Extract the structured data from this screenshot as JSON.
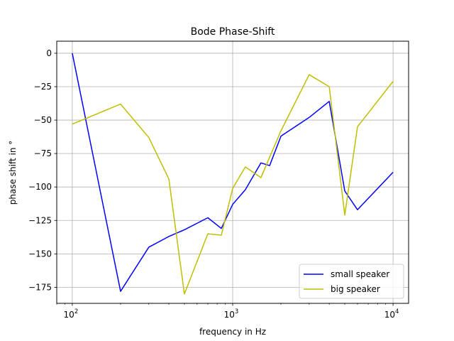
{
  "chart_data": {
    "type": "line",
    "title": "Bode Phase-Shift",
    "xlabel": "frequency in Hz",
    "ylabel": "phase shift in °",
    "xscale": "log",
    "xlim": [
      80,
      12500
    ],
    "ylim": [
      -187,
      9
    ],
    "grid": true,
    "legend_position": "lower right",
    "x_ticks": [
      {
        "value": 100,
        "base": "10",
        "exp": "2"
      },
      {
        "value": 1000,
        "base": "10",
        "exp": "3"
      },
      {
        "value": 10000,
        "base": "10",
        "exp": "4"
      }
    ],
    "y_ticks": [
      0,
      -25,
      -50,
      -75,
      -100,
      -125,
      -150,
      -175
    ],
    "y_tick_labels": [
      "0",
      "−25",
      "−50",
      "−75",
      "−100",
      "−125",
      "−150",
      "−175"
    ],
    "series": [
      {
        "name": "small speaker",
        "color": "#0000ff",
        "x": [
          100,
          200,
          300,
          400,
          500,
          700,
          850,
          1000,
          1200,
          1500,
          1700,
          2000,
          3000,
          4000,
          5000,
          6000,
          10000
        ],
        "y": [
          0,
          -178,
          -145,
          -137,
          -132,
          -123,
          -131,
          -113,
          -102,
          -82,
          -84,
          -62,
          -48,
          -36,
          -103,
          -117,
          -89
        ]
      },
      {
        "name": "big speaker",
        "color": "#bfbf00",
        "x": [
          100,
          200,
          300,
          400,
          500,
          700,
          850,
          1000,
          1200,
          1500,
          2000,
          3000,
          4000,
          5000,
          6000,
          10000
        ],
        "y": [
          -53,
          -38,
          -63,
          -94,
          -180,
          -135,
          -136,
          -101,
          -85,
          -93,
          -58,
          -16,
          -25,
          -121,
          -55,
          -21
        ]
      }
    ]
  }
}
